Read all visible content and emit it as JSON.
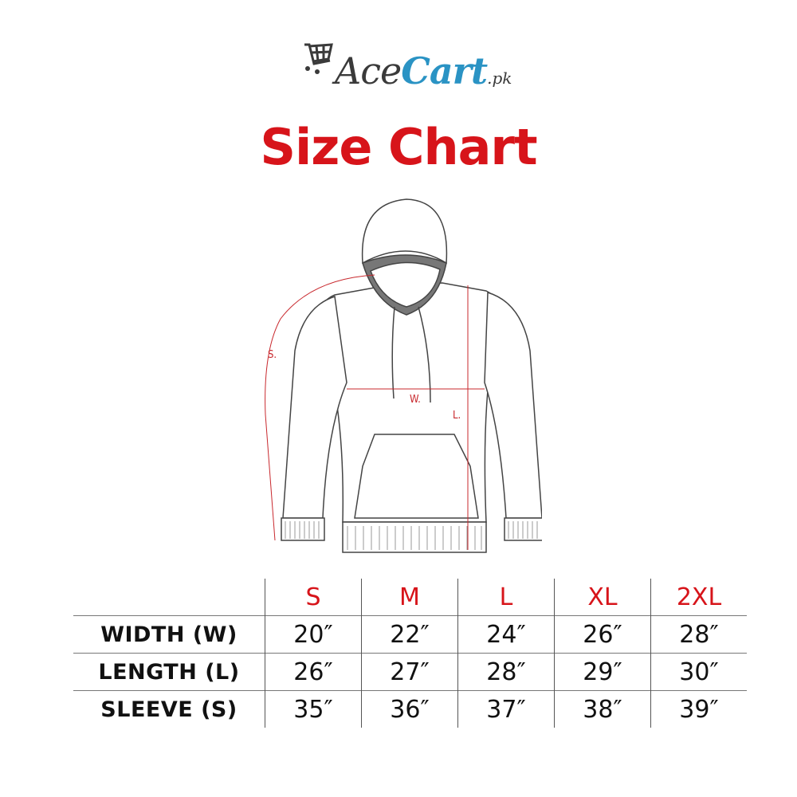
{
  "logo": {
    "part1": "Ace",
    "part2": "Cart",
    "part3": ".pk"
  },
  "title": "Size Chart",
  "diagram": {
    "labels": {
      "sleeve": "S.",
      "width": "W.",
      "length": "L."
    }
  },
  "colors": {
    "accent": "#d7141a",
    "logo_blue": "#2a93c4",
    "logo_gray": "#3a3a3a",
    "measure_line": "#c8282d"
  },
  "table": {
    "sizes": [
      "S",
      "M",
      "L",
      "XL",
      "2XL"
    ],
    "rows": [
      {
        "label": "WIDTH (W)",
        "values": [
          "20″",
          "22″",
          "24″",
          "26″",
          "28″"
        ]
      },
      {
        "label": "LENGTH (L)",
        "values": [
          "26″",
          "27″",
          "28″",
          "29″",
          "30″"
        ]
      },
      {
        "label": "SLEEVE (S)",
        "values": [
          "35″",
          "36″",
          "37″",
          "38″",
          "39″"
        ]
      }
    ]
  }
}
